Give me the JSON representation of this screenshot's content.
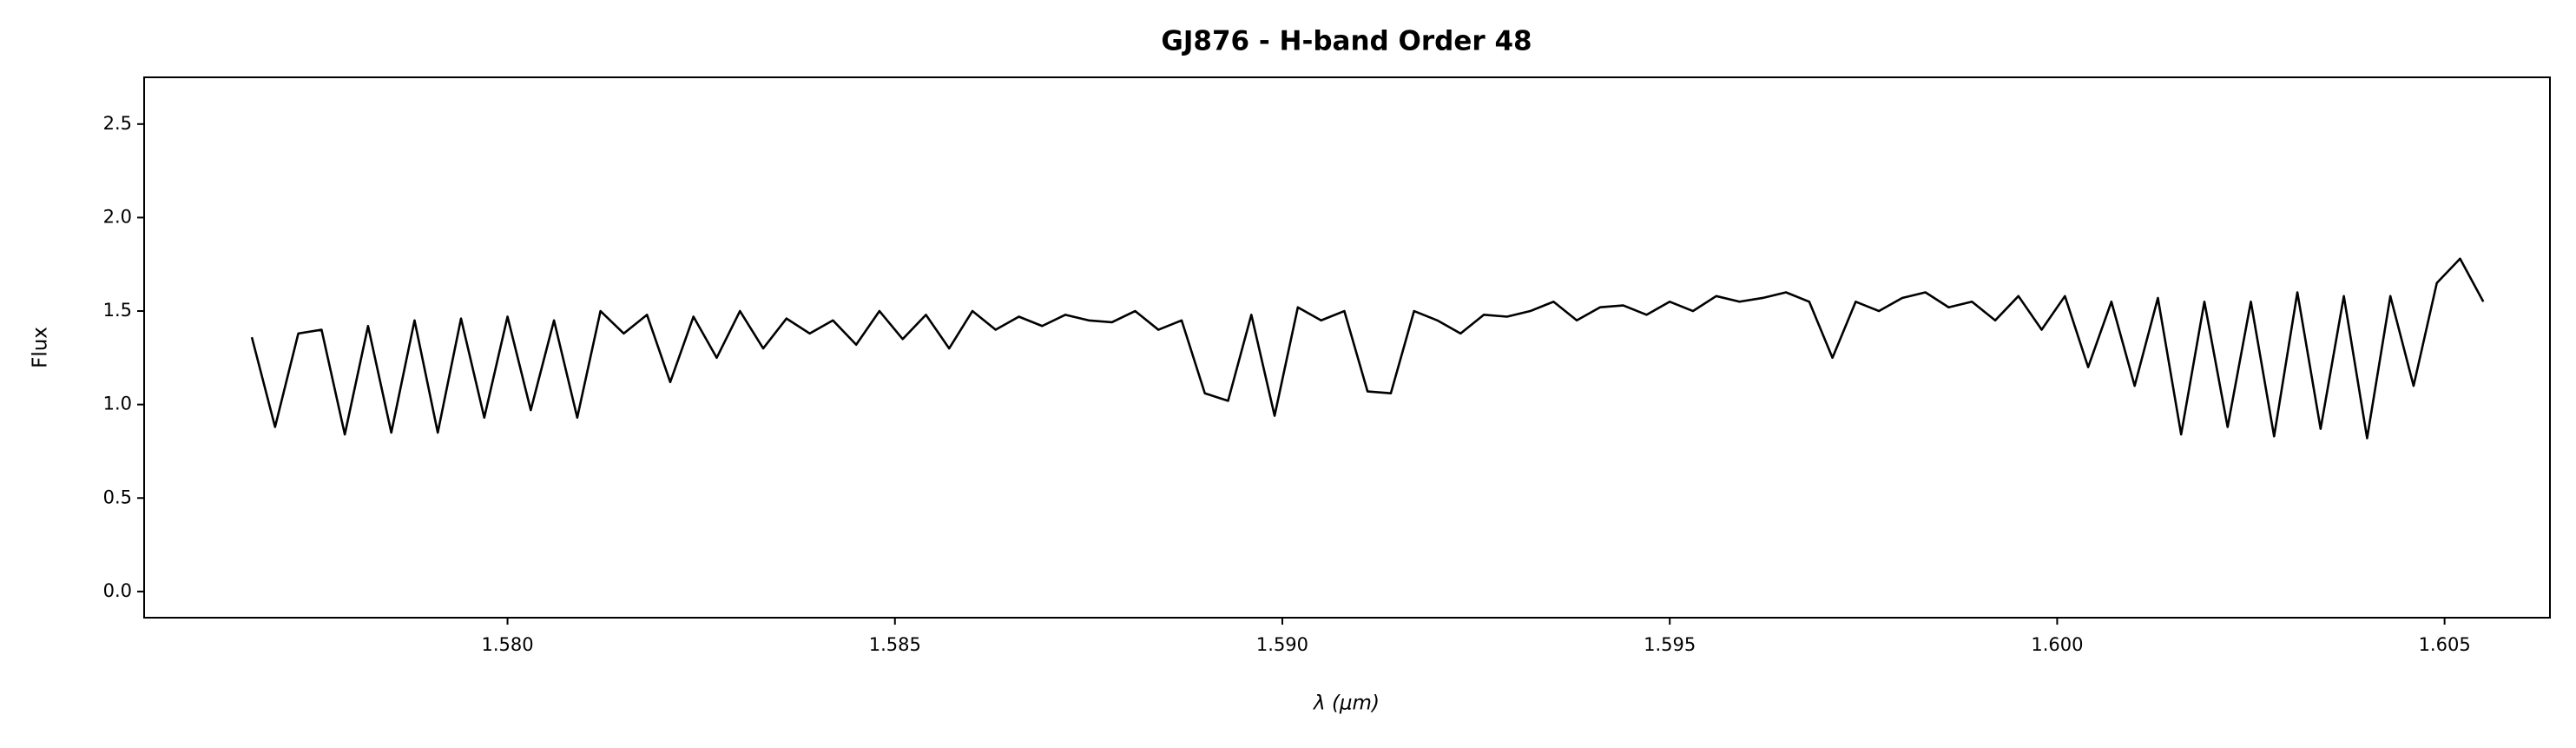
{
  "chart_data": {
    "type": "line",
    "title": "GJ876 - H-band Order 48",
    "xlabel": "λ (μm)",
    "ylabel": "Flux",
    "color": "#000000",
    "x": [
      1.5767,
      1.577,
      1.5773,
      1.5776,
      1.5779,
      1.5782,
      1.5785,
      1.5788,
      1.5791,
      1.5794,
      1.5797,
      1.58,
      1.5803,
      1.5806,
      1.5809,
      1.5812,
      1.5815,
      1.5818,
      1.5821,
      1.5824,
      1.5827,
      1.583,
      1.5833,
      1.5836,
      1.5839,
      1.5842,
      1.5845,
      1.5848,
      1.5851,
      1.5854,
      1.5857,
      1.586,
      1.5863,
      1.5866,
      1.5869,
      1.5872,
      1.5875,
      1.5878,
      1.5881,
      1.5884,
      1.5887,
      1.589,
      1.5893,
      1.5896,
      1.5899,
      1.5902,
      1.5905,
      1.5908,
      1.5911,
      1.5914,
      1.5917,
      1.592,
      1.5923,
      1.5926,
      1.5929,
      1.5932,
      1.5935,
      1.5938,
      1.5941,
      1.5944,
      1.5947,
      1.595,
      1.5953,
      1.5956,
      1.5959,
      1.5962,
      1.5965,
      1.5968,
      1.5971,
      1.5974,
      1.5977,
      1.598,
      1.5983,
      1.5986,
      1.5989,
      1.5992,
      1.5995,
      1.5998,
      1.6001,
      1.6004,
      1.6007,
      1.601,
      1.6013,
      1.6016,
      1.6019,
      1.6022,
      1.6025,
      1.6028,
      1.6031,
      1.6034,
      1.6037,
      1.604,
      1.6043,
      1.6046,
      1.6049,
      1.6052,
      1.6055
    ],
    "y": [
      1.36,
      0.88,
      1.38,
      1.4,
      0.84,
      1.42,
      0.85,
      1.45,
      0.85,
      1.46,
      0.93,
      1.47,
      0.97,
      1.45,
      0.93,
      1.5,
      1.38,
      1.48,
      1.12,
      1.47,
      1.25,
      1.5,
      1.3,
      1.46,
      1.38,
      1.45,
      1.32,
      1.5,
      1.35,
      1.48,
      1.3,
      1.5,
      1.4,
      1.47,
      1.42,
      1.48,
      1.45,
      1.44,
      1.5,
      1.4,
      1.45,
      1.06,
      1.02,
      1.48,
      0.94,
      1.52,
      1.45,
      1.5,
      1.07,
      1.06,
      1.5,
      1.45,
      1.38,
      1.48,
      1.47,
      1.5,
      1.55,
      1.45,
      1.52,
      1.53,
      1.48,
      1.55,
      1.5,
      1.58,
      1.55,
      1.57,
      1.6,
      1.55,
      1.25,
      1.55,
      1.5,
      1.57,
      1.6,
      1.52,
      1.55,
      1.45,
      1.58,
      1.4,
      1.58,
      1.2,
      1.55,
      1.1,
      1.57,
      0.84,
      1.55,
      0.88,
      1.55,
      0.83,
      1.6,
      0.87,
      1.58,
      0.82,
      1.58,
      1.1,
      1.65,
      1.78,
      1.55
    ],
    "xlim": [
      1.57531,
      1.60636
    ],
    "ylim": [
      -0.14,
      2.75
    ],
    "xticks": [
      {
        "value": 1.58,
        "label": "1.580"
      },
      {
        "value": 1.585,
        "label": "1.585"
      },
      {
        "value": 1.59,
        "label": "1.590"
      },
      {
        "value": 1.595,
        "label": "1.595"
      },
      {
        "value": 1.6,
        "label": "1.600"
      },
      {
        "value": 1.605,
        "label": "1.605"
      }
    ],
    "yticks": [
      {
        "value": 0,
        "label": "0.0"
      },
      0.5,
      {
        "value": 1,
        "label": "1.0"
      },
      1.5,
      {
        "value": 2,
        "label": "2.0"
      },
      2.5
    ],
    "grid": false
  }
}
